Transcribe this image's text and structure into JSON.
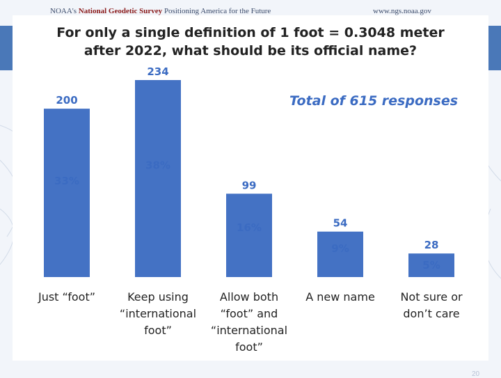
{
  "header": {
    "brand_prefix": "NOAA's",
    "brand": "National Geodetic Survey",
    "tagline": "Positioning America for the Future",
    "url": "www.ngs.noaa.gov"
  },
  "page_number": "20",
  "colors": {
    "bar": "#4472c4",
    "band": "#4a78b8",
    "value_label": "#3b6bc2",
    "text": "#222222"
  },
  "chart_data": {
    "type": "bar",
    "title_lines": [
      "For only a single definition of 1 foot = 0.3048 meter",
      "after 2022, what should be its official name?"
    ],
    "note": "Total of 615 responses",
    "categories": [
      [
        "Just “foot”"
      ],
      [
        "Keep using",
        "“international",
        "foot”"
      ],
      [
        "Allow both",
        "“foot” and",
        "“international",
        "foot”"
      ],
      [
        "A new name"
      ],
      [
        "Not sure or",
        "don’t care"
      ]
    ],
    "values": [
      200,
      234,
      99,
      54,
      28
    ],
    "percent_labels": [
      "33%",
      "38%",
      "16%",
      "9%",
      "5%"
    ],
    "ylim": [
      0,
      234
    ],
    "grid": false,
    "legend": "none"
  }
}
